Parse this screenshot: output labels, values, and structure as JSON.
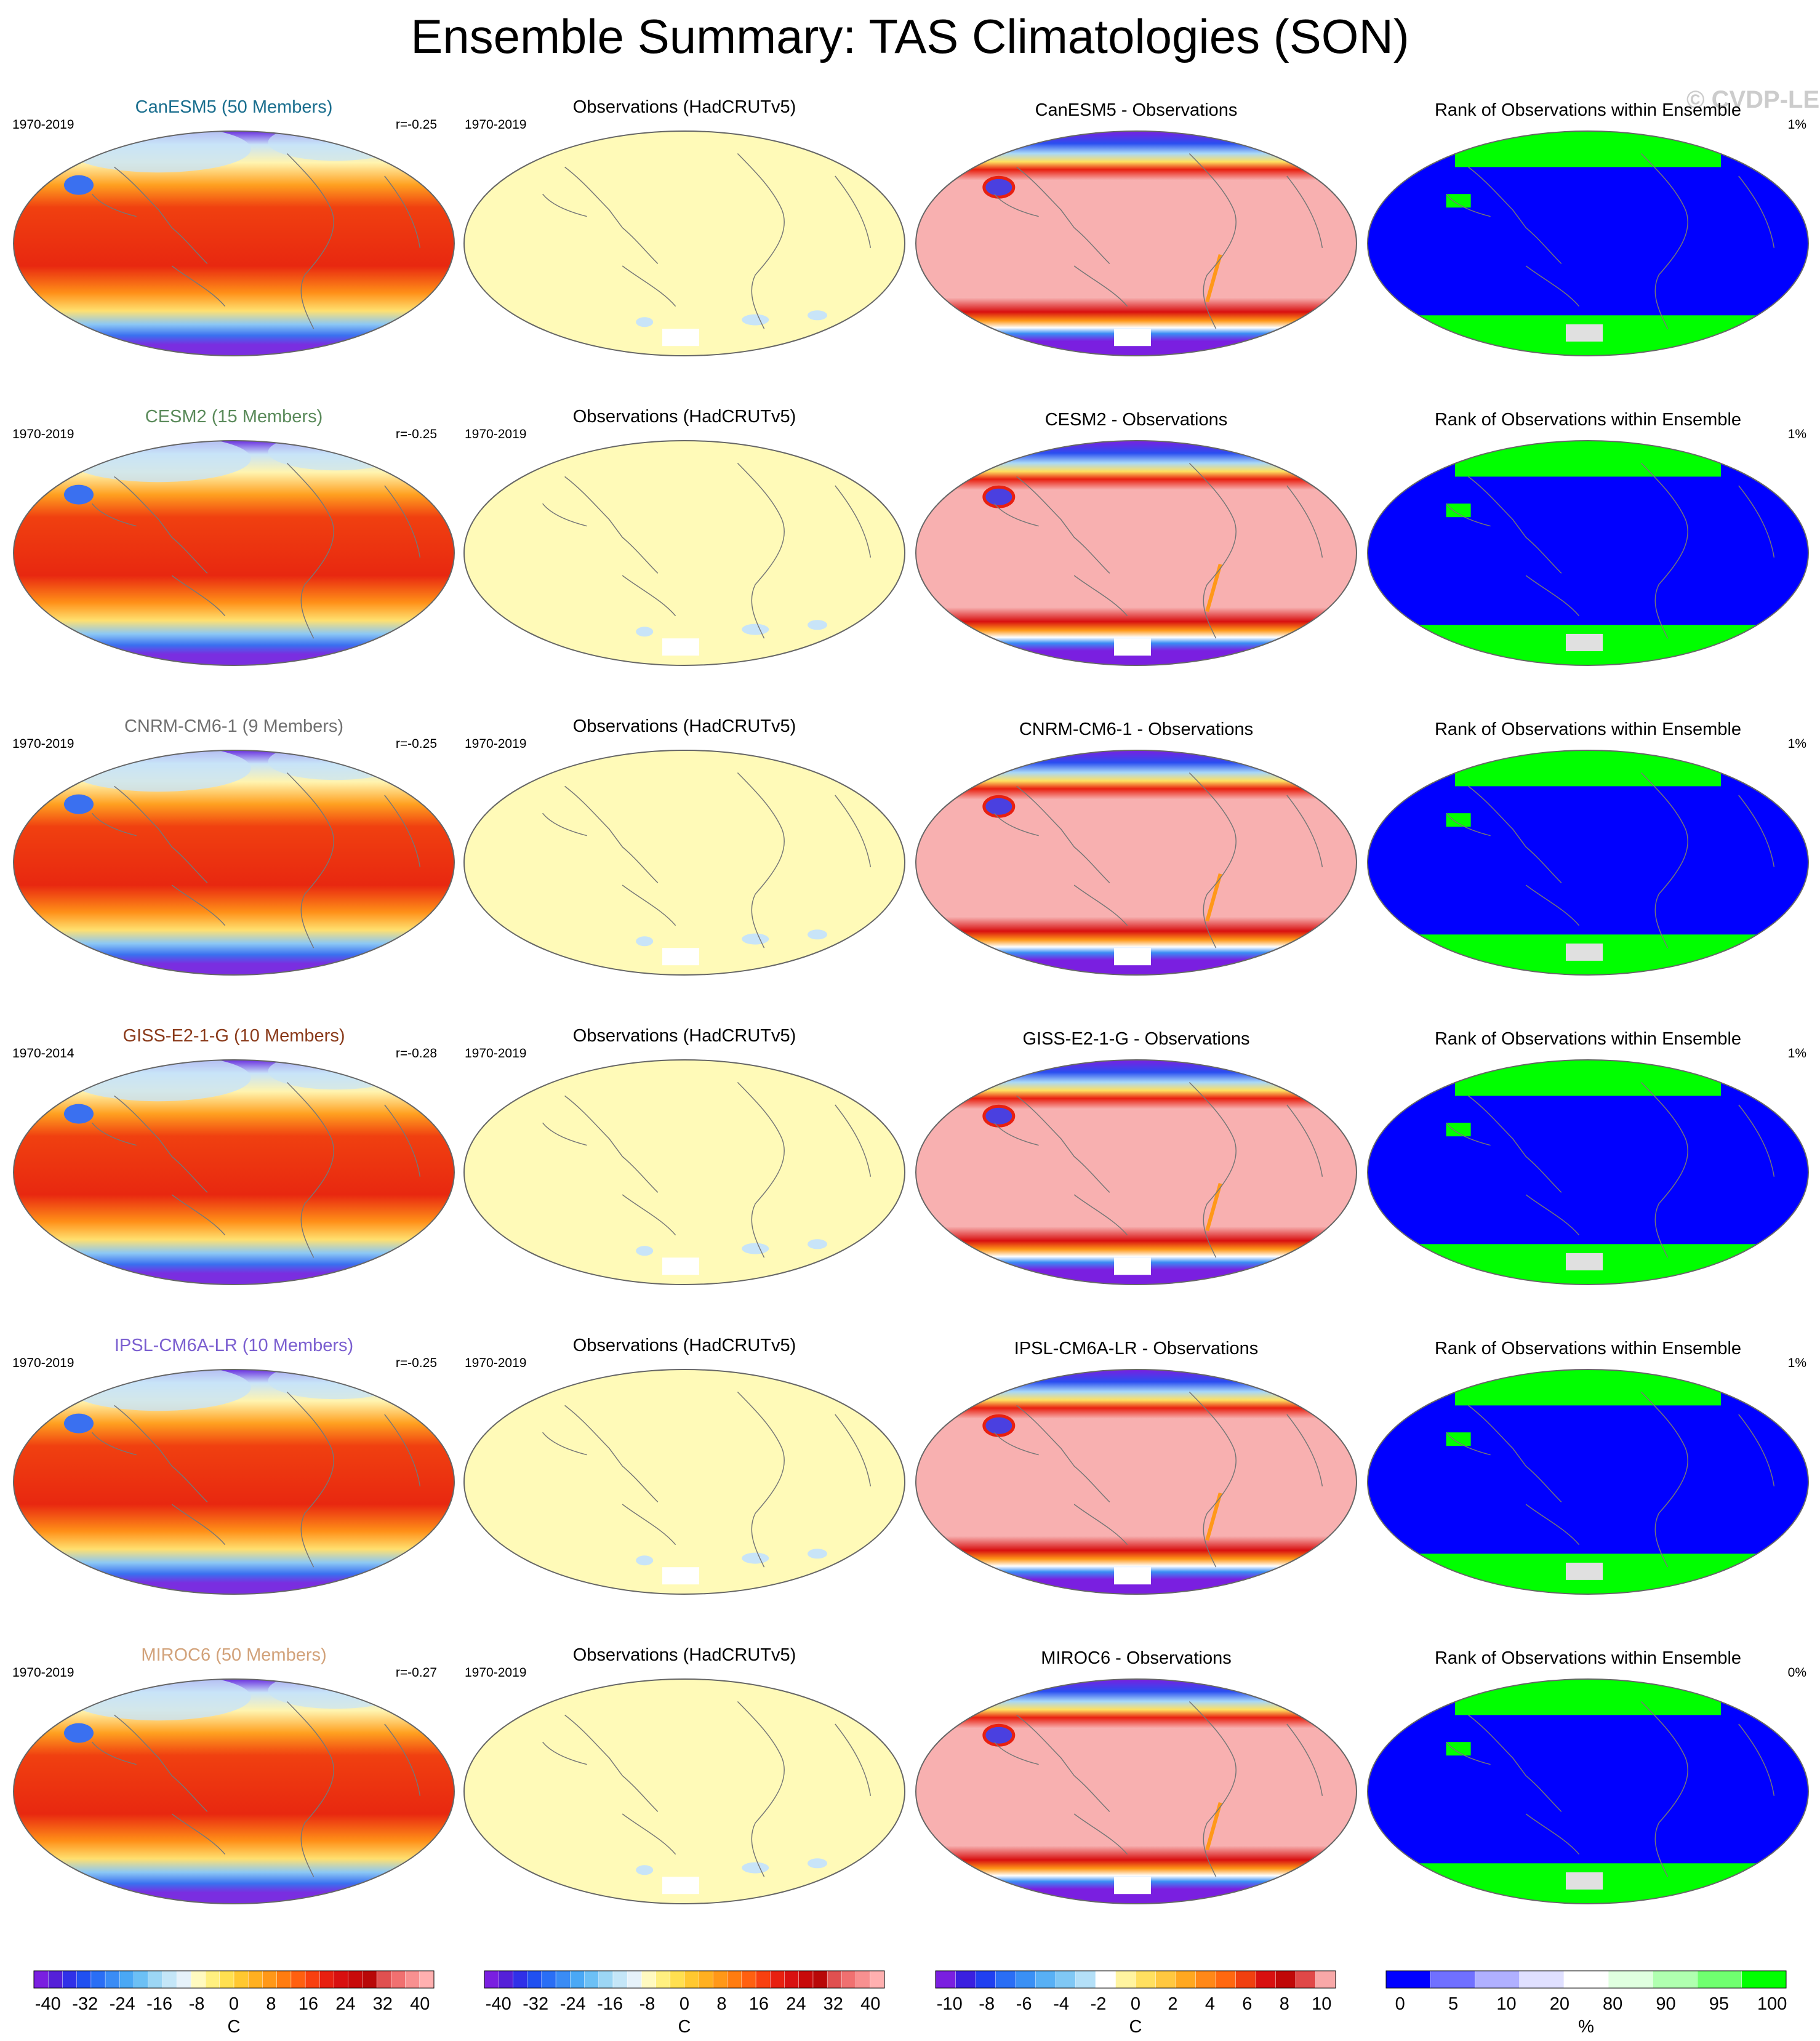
{
  "title": "Ensemble Summary: TAS Climatologies (SON)",
  "watermark": "© CVDP-LE",
  "obs_title": "Observations (HadCRUTv5)",
  "rank_title": "Rank of Observations within Ensemble",
  "rows": [
    {
      "model_title": "CanESM5 (50 Members)",
      "title_color": "#1a6e8e",
      "period": "1970-2019",
      "r": "r=-0.25",
      "obs_period": "1970-2019",
      "diff_title": "CanESM5 - Observations",
      "rank_pct": "1%"
    },
    {
      "model_title": "CESM2 (15 Members)",
      "title_color": "#5a8a5a",
      "period": "1970-2019",
      "r": "r=-0.25",
      "obs_period": "1970-2019",
      "diff_title": "CESM2 - Observations",
      "rank_pct": "1%"
    },
    {
      "model_title": "CNRM-CM6-1 (9 Members)",
      "title_color": "#707070",
      "period": "1970-2019",
      "r": "r=-0.25",
      "obs_period": "1970-2019",
      "diff_title": "CNRM-CM6-1 - Observations",
      "rank_pct": "1%"
    },
    {
      "model_title": "GISS-E2-1-G (10 Members)",
      "title_color": "#8a3a1a",
      "period": "1970-2014",
      "r": "r=-0.28",
      "obs_period": "1970-2019",
      "diff_title": "GISS-E2-1-G - Observations",
      "rank_pct": "1%"
    },
    {
      "model_title": "IPSL-CM6A-LR (10 Members)",
      "title_color": "#7b5fd0",
      "period": "1970-2019",
      "r": "r=-0.25",
      "obs_period": "1970-2019",
      "diff_title": "IPSL-CM6A-LR - Observations",
      "rank_pct": "1%"
    },
    {
      "model_title": "MIROC6 (50 Members)",
      "title_color": "#d2a27a",
      "period": "1970-2019",
      "r": "r=-0.27",
      "obs_period": "1970-2019",
      "diff_title": "MIROC6 - Observations",
      "rank_pct": "0%"
    }
  ],
  "colorbars": [
    {
      "labels": [
        "-40",
        "-32",
        "-24",
        "-16",
        "-8",
        "0",
        "8",
        "16",
        "24",
        "32",
        "40"
      ],
      "unit": "C",
      "colors": [
        "#7a1fe0",
        "#5520d8",
        "#3030e8",
        "#2050f0",
        "#2a6ef5",
        "#3a8cf5",
        "#4aa8f5",
        "#6cc0f5",
        "#9cd6f5",
        "#c4e6f8",
        "#e6f2fa",
        "#fffac0",
        "#fff080",
        "#ffe050",
        "#ffc830",
        "#ffb020",
        "#ff9818",
        "#ff7c10",
        "#ff6010",
        "#f84010",
        "#e82010",
        "#d81010",
        "#c80a0a",
        "#b80808",
        "#e05050",
        "#f07070",
        "#f89090",
        "#ffb0b0"
      ]
    },
    {
      "labels": [
        "-40",
        "-32",
        "-24",
        "-16",
        "-8",
        "0",
        "8",
        "16",
        "24",
        "32",
        "40"
      ],
      "unit": "C",
      "colors": [
        "#7a1fe0",
        "#5520d8",
        "#3030e8",
        "#2050f0",
        "#2a6ef5",
        "#3a8cf5",
        "#4aa8f5",
        "#6cc0f5",
        "#9cd6f5",
        "#c4e6f8",
        "#e6f2fa",
        "#fffac0",
        "#fff080",
        "#ffe050",
        "#ffc830",
        "#ffb020",
        "#ff9818",
        "#ff7c10",
        "#ff6010",
        "#f84010",
        "#e82010",
        "#d81010",
        "#c80a0a",
        "#b80808",
        "#e05050",
        "#f07070",
        "#f89090",
        "#ffb0b0"
      ]
    },
    {
      "labels": [
        "-10",
        "-8",
        "-6",
        "-4",
        "-2",
        "0",
        "2",
        "4",
        "6",
        "8",
        "10"
      ],
      "unit": "C",
      "colors": [
        "#7a1fe0",
        "#3a20e0",
        "#2040f0",
        "#2a6ef5",
        "#3a90f5",
        "#58b0f5",
        "#80c8f5",
        "#b4e0f8",
        "#ffffff",
        "#fff4a0",
        "#ffe060",
        "#ffc840",
        "#ffa820",
        "#ff8818",
        "#ff6810",
        "#f04010",
        "#d81010",
        "#c00808",
        "#e04848",
        "#f8a8a8"
      ]
    },
    {
      "labels": [
        "0",
        "5",
        "10",
        "20",
        "80",
        "90",
        "95",
        "100"
      ],
      "unit": "%",
      "colors": [
        "#0000ff",
        "#7070ff",
        "#b0b0ff",
        "#e0e0ff",
        "#ffffff",
        "#e0ffe0",
        "#b0ffb0",
        "#70ff70",
        "#00ff00"
      ]
    }
  ]
}
